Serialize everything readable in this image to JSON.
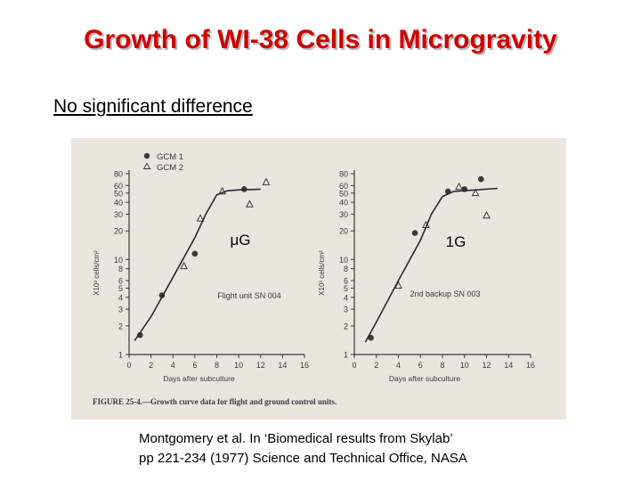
{
  "slide": {
    "title": "Growth of WI-38 Cells in Microgravity",
    "subtitle": "No significant difference",
    "citation_line1": "Montgomery et al.  In ‘Biomedical results from Skylab’",
    "citation_line2": "pp 221-234 (1977) Science and Technical Office, NASA"
  },
  "figure": {
    "caption": "FIGURE 25-4.—Growth curve data for flight and ground control units.",
    "legend": [
      {
        "marker": "circle",
        "label": "GCM 1"
      },
      {
        "marker": "triangle",
        "label": "GCM 2"
      }
    ],
    "colors": {
      "background": "#e9e6df",
      "ink": "#3a3a3a",
      "title": "#cc0000"
    }
  },
  "chart_data": [
    {
      "type": "scatter",
      "label": "μG",
      "annotation": "Flight unit SN 004",
      "xlabel": "Days after subculture",
      "ylabel": "X10³ cells/cm²",
      "xlim": [
        0,
        16
      ],
      "ylim": [
        1,
        80
      ],
      "yscale": "log",
      "xticks": [
        0,
        2,
        4,
        6,
        8,
        10,
        12,
        14,
        16
      ],
      "yticks": [
        1,
        2,
        3,
        4,
        5,
        6,
        8,
        10,
        20,
        30,
        40,
        50,
        60,
        80
      ],
      "series": [
        {
          "name": "GCM 1",
          "marker": "circle",
          "x": [
            1,
            3,
            6,
            10.5
          ],
          "y": [
            1.6,
            4.2,
            11.5,
            55
          ]
        },
        {
          "name": "GCM 2",
          "marker": "triangle",
          "x": [
            5,
            6.5,
            8.5,
            11,
            12.5
          ],
          "y": [
            8.5,
            27,
            52,
            38,
            65
          ]
        },
        {
          "name": "fit",
          "style": "line",
          "x": [
            0.5,
            2,
            4,
            6,
            7,
            8,
            9,
            10,
            12
          ],
          "y": [
            1.4,
            2.5,
            6.5,
            17,
            30,
            48,
            53,
            54,
            55
          ]
        }
      ]
    },
    {
      "type": "scatter",
      "label": "1G",
      "annotation": "2nd backup SN 003",
      "xlabel": "Days after subculture",
      "ylabel": "X10³ cells/cm²",
      "xlim": [
        0,
        16
      ],
      "ylim": [
        1,
        80
      ],
      "yscale": "log",
      "xticks": [
        0,
        2,
        4,
        6,
        8,
        10,
        12,
        14,
        16
      ],
      "yticks": [
        1,
        2,
        3,
        4,
        5,
        6,
        8,
        10,
        20,
        30,
        40,
        50,
        60,
        80
      ],
      "series": [
        {
          "name": "GCM 1",
          "marker": "circle",
          "x": [
            1.5,
            5.5,
            8.5,
            10,
            11.5
          ],
          "y": [
            1.5,
            19,
            52,
            55,
            70
          ]
        },
        {
          "name": "GCM 2",
          "marker": "triangle",
          "x": [
            4,
            6.5,
            9.5,
            11,
            12
          ],
          "y": [
            5.3,
            23,
            58,
            50,
            29
          ]
        },
        {
          "name": "fit",
          "style": "line",
          "x": [
            1,
            2,
            4,
            6,
            7,
            8,
            9,
            10,
            13
          ],
          "y": [
            1.35,
            2.2,
            6,
            16,
            30,
            46,
            52,
            53,
            56
          ]
        }
      ]
    }
  ]
}
